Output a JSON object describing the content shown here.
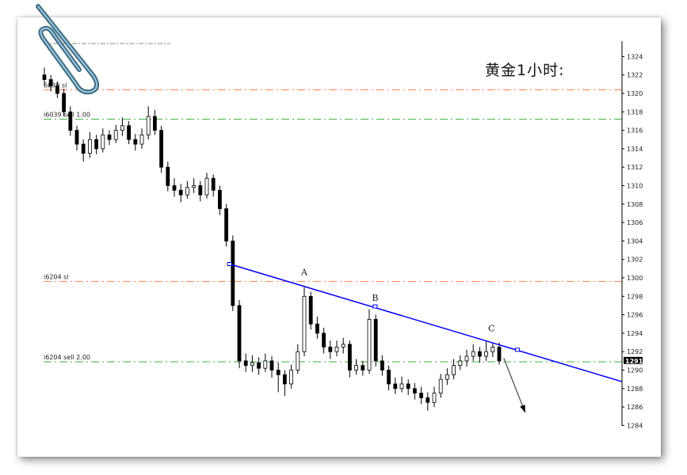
{
  "title": "黄金1小时:",
  "chart_data": {
    "type": "candlestick",
    "title": "黄金1小时:",
    "ylim": [
      1284,
      1325.5
    ],
    "y_ticks": [
      1324,
      1322,
      1320,
      1318,
      1316,
      1314,
      1312,
      1310,
      1308,
      1306,
      1304,
      1302,
      1300,
      1298,
      1296,
      1294,
      1292,
      1290,
      1288,
      1286,
      1284
    ],
    "current_price": 1291,
    "current_price_label": "1291",
    "grid": false,
    "candles_ohlc": [
      [
        1322,
        1322.8,
        1320.8,
        1321.5
      ],
      [
        1321.5,
        1322,
        1320.2,
        1320.8
      ],
      [
        1320.8,
        1321.3,
        1319.5,
        1320
      ],
      [
        1320,
        1320.5,
        1317.5,
        1318
      ],
      [
        1318,
        1318.6,
        1315.4,
        1316
      ],
      [
        1316,
        1316.5,
        1313.8,
        1314.5
      ],
      [
        1314.5,
        1315,
        1312.6,
        1313.5
      ],
      [
        1313.5,
        1315.8,
        1313,
        1315
      ],
      [
        1315,
        1315.5,
        1313.4,
        1314
      ],
      [
        1314,
        1316.2,
        1313.6,
        1315.5
      ],
      [
        1315.5,
        1316,
        1314.4,
        1315
      ],
      [
        1315,
        1316.6,
        1314.6,
        1316
      ],
      [
        1316,
        1317.4,
        1315.4,
        1316.5
      ],
      [
        1316.5,
        1317,
        1314.5,
        1315
      ],
      [
        1315,
        1315.6,
        1313.8,
        1314.5
      ],
      [
        1314.5,
        1316.2,
        1314,
        1315.5
      ],
      [
        1315.5,
        1318.6,
        1315,
        1317.5
      ],
      [
        1317.5,
        1318.2,
        1315.5,
        1316
      ],
      [
        1316,
        1316.5,
        1311.4,
        1312
      ],
      [
        1312,
        1312.6,
        1309.4,
        1310
      ],
      [
        1310,
        1310.8,
        1308.8,
        1309.5
      ],
      [
        1309.5,
        1310.2,
        1308.2,
        1309
      ],
      [
        1309,
        1310.5,
        1308.6,
        1309.8
      ],
      [
        1309.8,
        1310.8,
        1309.2,
        1310
      ],
      [
        1310,
        1310.5,
        1308.3,
        1309
      ],
      [
        1309,
        1311.4,
        1308.6,
        1310.8
      ],
      [
        1310.8,
        1311.2,
        1308.8,
        1309.5
      ],
      [
        1309.5,
        1310,
        1306.8,
        1307.5
      ],
      [
        1307.5,
        1308,
        1303.4,
        1304
      ],
      [
        1304,
        1304.6,
        1296.4,
        1297
      ],
      [
        1297,
        1297.6,
        1290.2,
        1291
      ],
      [
        1291,
        1291.8,
        1289.8,
        1290.5
      ],
      [
        1290.5,
        1291.6,
        1289.8,
        1290.8
      ],
      [
        1290.8,
        1291.4,
        1289.5,
        1290.2
      ],
      [
        1290.2,
        1291.8,
        1289.8,
        1291
      ],
      [
        1291,
        1291.5,
        1289.2,
        1290
      ],
      [
        1290,
        1290.8,
        1287.6,
        1289.5
      ],
      [
        1289.5,
        1290,
        1287.2,
        1288.5
      ],
      [
        1288.5,
        1290.6,
        1288,
        1290
      ],
      [
        1290,
        1292.8,
        1289.6,
        1292
      ],
      [
        1292,
        1299,
        1291.5,
        1298
      ],
      [
        1298,
        1298.5,
        1294.4,
        1295
      ],
      [
        1295,
        1295.8,
        1293.4,
        1294
      ],
      [
        1294,
        1294.6,
        1291.8,
        1292.5
      ],
      [
        1292.5,
        1293.2,
        1291.2,
        1292
      ],
      [
        1292,
        1293.2,
        1291.5,
        1292.5
      ],
      [
        1292.5,
        1293.5,
        1291.8,
        1292.8
      ],
      [
        1292.8,
        1293.2,
        1289.2,
        1290
      ],
      [
        1290,
        1291.2,
        1289.5,
        1290.5
      ],
      [
        1290.5,
        1291,
        1289.4,
        1290
      ],
      [
        1290,
        1296.6,
        1289.6,
        1295.5
      ],
      [
        1295.5,
        1296,
        1290.4,
        1291
      ],
      [
        1291,
        1291.6,
        1289.4,
        1290
      ],
      [
        1290,
        1290.5,
        1287.8,
        1288.5
      ],
      [
        1288.5,
        1289.2,
        1287.4,
        1288
      ],
      [
        1288,
        1289.3,
        1287.6,
        1288.5
      ],
      [
        1288.5,
        1289,
        1287.3,
        1288
      ],
      [
        1288,
        1288.6,
        1286.8,
        1287.5
      ],
      [
        1287.5,
        1288.2,
        1286.3,
        1287
      ],
      [
        1287,
        1287.6,
        1285.6,
        1286.5
      ],
      [
        1286.5,
        1288.2,
        1286,
        1287.5
      ],
      [
        1287.5,
        1289.6,
        1287,
        1289
      ],
      [
        1289,
        1290.2,
        1288.4,
        1289.5
      ],
      [
        1289.5,
        1291.2,
        1289,
        1290.5
      ],
      [
        1290.5,
        1291.6,
        1290,
        1291
      ],
      [
        1291,
        1292.2,
        1290.4,
        1291.5
      ],
      [
        1291.5,
        1292.8,
        1291,
        1292
      ],
      [
        1292,
        1292.5,
        1290.8,
        1291.5
      ],
      [
        1291.5,
        1293.2,
        1291,
        1292
      ],
      [
        1292,
        1293,
        1291.4,
        1292.5
      ],
      [
        1292.5,
        1293,
        1290.6,
        1291
      ]
    ],
    "horizontal_lines": [
      {
        "price": 1320.4,
        "label": "6039 sl",
        "color": "#ff7f50"
      },
      {
        "price": 1317.2,
        "label": "i6039 sell 1.00",
        "color": "#3cb03c"
      },
      {
        "price": 1299.6,
        "label": "i6204 sl",
        "color": "#ff7f50"
      },
      {
        "price": 1290.9,
        "label": "i6204 sell 2.00",
        "color": "#3cb03c"
      }
    ],
    "trendline": {
      "color": "#0000ff",
      "points": [
        [
          28.5,
          1301.5
        ],
        [
          88.9,
          1288.75
        ]
      ],
      "markers": [
        [
          28.5,
          1301.5
        ],
        [
          50.9,
          1296.9
        ],
        [
          72.8,
          1292.2
        ]
      ]
    },
    "wave_labels": [
      {
        "text": "A",
        "index": 40,
        "price": 1300.3
      },
      {
        "text": "B",
        "index": 50.9,
        "price": 1297.5
      },
      {
        "text": "C",
        "index": 68.8,
        "price": 1294.2
      }
    ],
    "arrow": {
      "from": [
        70.7,
        1291.3
      ],
      "to": [
        74,
        1285.4
      ]
    }
  }
}
